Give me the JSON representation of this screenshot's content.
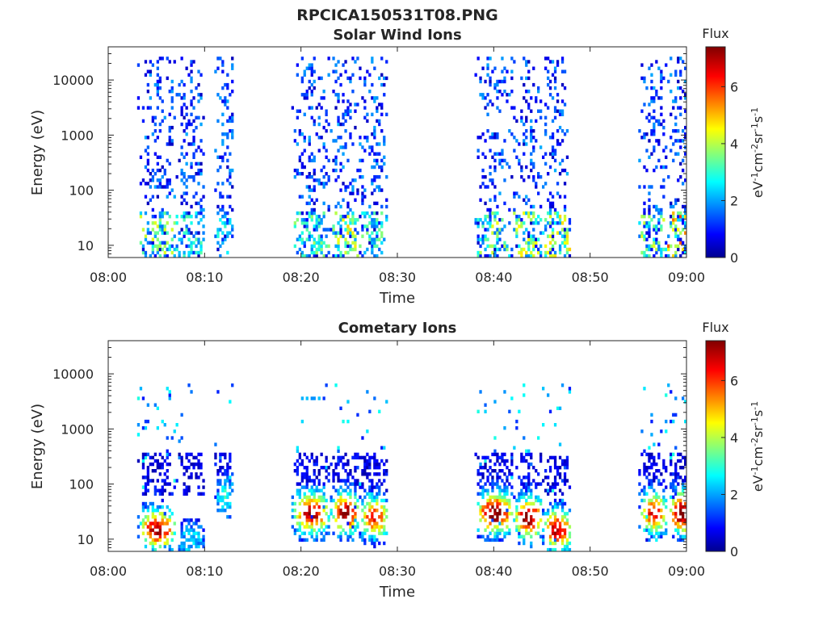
{
  "figure": {
    "title": "RPCICA150531T08.PNG"
  },
  "chart_data": [
    {
      "type": "heatmap",
      "title": "Solar Wind Ions",
      "xlabel": "Time",
      "ylabel": "Energy (eV)",
      "x_ticks": [
        "08:00",
        "08:10",
        "08:20",
        "08:30",
        "08:40",
        "08:50",
        "09:00"
      ],
      "y_ticks": [
        "10",
        "100",
        "1000",
        "10000"
      ],
      "y_scale": "log",
      "xlim": [
        "08:00",
        "09:00"
      ],
      "ylim": [
        6,
        40000
      ],
      "colorbar": {
        "title": "Flux",
        "label": "eV-1cm-2sr-1s-1",
        "range": [
          0,
          7.4
        ],
        "ticks": [
          0,
          2,
          4,
          6
        ],
        "colormap": "jet"
      },
      "bursts": [
        {
          "start": "08:03",
          "end": "08:07",
          "peak_flux": 4.5,
          "peak_energy": 10
        },
        {
          "start": "08:07",
          "end": "08:10",
          "peak_flux": 3.5,
          "peak_energy": 10
        },
        {
          "start": "08:11",
          "end": "08:13",
          "peak_flux": 3.2,
          "peak_energy": 10
        },
        {
          "start": "08:19",
          "end": "08:23",
          "peak_flux": 4.0,
          "peak_energy": 15
        },
        {
          "start": "08:23",
          "end": "08:26",
          "peak_flux": 5.0,
          "peak_energy": 25
        },
        {
          "start": "08:26",
          "end": "08:29",
          "peak_flux": 3.8,
          "peak_energy": 10
        },
        {
          "start": "08:38",
          "end": "08:42",
          "peak_flux": 4.5,
          "peak_energy": 20
        },
        {
          "start": "08:42",
          "end": "08:45",
          "peak_flux": 4.8,
          "peak_energy": 20
        },
        {
          "start": "08:45",
          "end": "08:48",
          "peak_flux": 5.0,
          "peak_energy": 20
        },
        {
          "start": "08:55",
          "end": "08:58",
          "peak_flux": 4.5,
          "peak_energy": 20
        },
        {
          "start": "08:58",
          "end": "09:01",
          "peak_flux": 6.0,
          "peak_energy": 15
        }
      ]
    },
    {
      "type": "heatmap",
      "title": "Cometary Ions",
      "xlabel": "Time",
      "ylabel": "Energy (eV)",
      "x_ticks": [
        "08:00",
        "08:10",
        "08:20",
        "08:30",
        "08:40",
        "08:50",
        "09:00"
      ],
      "y_ticks": [
        "10",
        "100",
        "1000",
        "10000"
      ],
      "y_scale": "log",
      "xlim": [
        "08:00",
        "09:00"
      ],
      "ylim": [
        6,
        40000
      ],
      "colorbar": {
        "title": "Flux",
        "label": "eV-1cm-2sr-1s-1",
        "range": [
          0,
          7.4
        ],
        "ticks": [
          0,
          2,
          4,
          6
        ],
        "colormap": "jet"
      },
      "bursts": [
        {
          "start": "08:03",
          "end": "08:07",
          "peak_flux": 6.5,
          "peak_energy": 15
        },
        {
          "start": "08:07",
          "end": "08:10",
          "peak_flux": 2.0,
          "peak_energy": 10
        },
        {
          "start": "08:11",
          "end": "08:13",
          "peak_flux": 2.5,
          "peak_energy": 60
        },
        {
          "start": "08:19",
          "end": "08:23",
          "peak_flux": 6.5,
          "peak_energy": 30
        },
        {
          "start": "08:23",
          "end": "08:26",
          "peak_flux": 7.0,
          "peak_energy": 30
        },
        {
          "start": "08:26",
          "end": "08:29",
          "peak_flux": 6.0,
          "peak_energy": 25
        },
        {
          "start": "08:38",
          "end": "08:42",
          "peak_flux": 7.0,
          "peak_energy": 30
        },
        {
          "start": "08:42",
          "end": "08:45",
          "peak_flux": 7.0,
          "peak_energy": 25
        },
        {
          "start": "08:45",
          "end": "08:48",
          "peak_flux": 6.5,
          "peak_energy": 15
        },
        {
          "start": "08:55",
          "end": "08:58",
          "peak_flux": 6.0,
          "peak_energy": 30
        },
        {
          "start": "08:58",
          "end": "09:01",
          "peak_flux": 7.2,
          "peak_energy": 30
        }
      ]
    }
  ]
}
